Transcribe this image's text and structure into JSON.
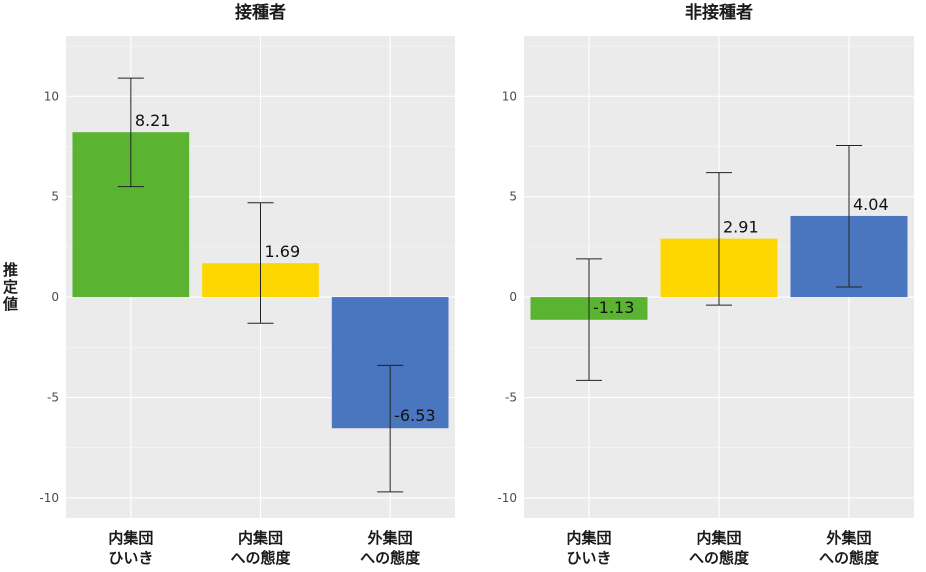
{
  "chart_data": {
    "type": "bar",
    "ylabel": "推定値",
    "ylim": [
      -11,
      13
    ],
    "yticks": [
      -10,
      -5,
      0,
      5,
      10
    ],
    "categories": [
      [
        "内集団",
        "ひいき"
      ],
      [
        "内集団",
        "への態度"
      ],
      [
        "外集団",
        "への態度"
      ]
    ],
    "colors": [
      "#5ab431",
      "#ffd700",
      "#4a75bf"
    ],
    "panels": [
      {
        "title": "接種者",
        "values": [
          8.21,
          1.69,
          -6.53
        ],
        "value_labels": [
          "8.21",
          "1.69",
          "-6.53"
        ],
        "error_low": [
          5.5,
          -1.3,
          -9.7
        ],
        "error_high": [
          10.9,
          4.7,
          -3.4
        ]
      },
      {
        "title": "非接種者",
        "values": [
          -1.13,
          2.91,
          4.04
        ],
        "value_labels": [
          "-1.13",
          "2.91",
          "4.04"
        ],
        "error_low": [
          -4.15,
          -0.4,
          0.5
        ],
        "error_high": [
          1.9,
          6.2,
          7.55
        ]
      }
    ]
  }
}
